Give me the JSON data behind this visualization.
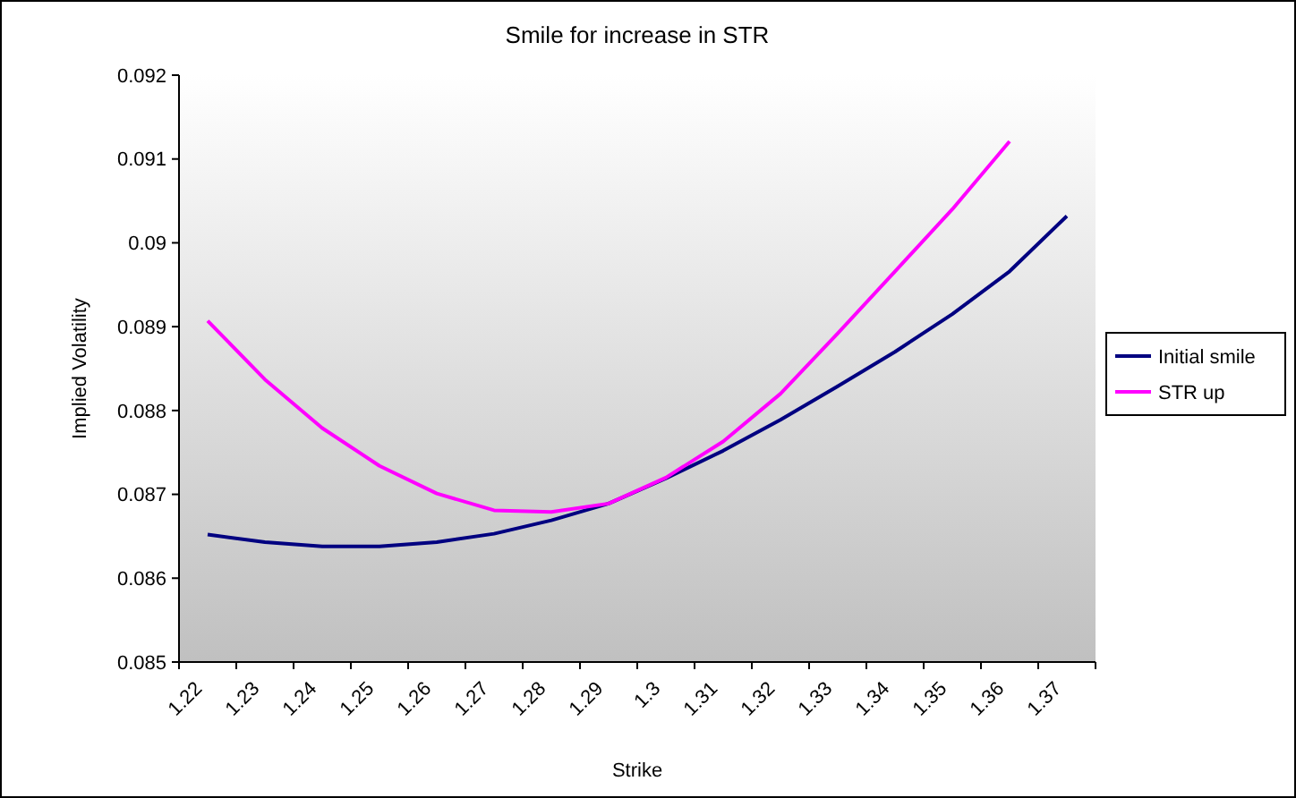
{
  "chart_data": {
    "type": "line",
    "title": "Smile for increase in STR",
    "xlabel": "Strike",
    "ylabel": "Implied Volatility",
    "categories": [
      "1.22",
      "1.23",
      "1.24",
      "1.25",
      "1.26",
      "1.27",
      "1.28",
      "1.29",
      "1.3",
      "1.31",
      "1.32",
      "1.33",
      "1.34",
      "1.35",
      "1.36",
      "1.37"
    ],
    "series": [
      {
        "name": "Initial smile",
        "color": "#000080",
        "values": [
          0.08652,
          0.08643,
          0.08638,
          0.08638,
          0.08643,
          0.08653,
          0.08669,
          0.08689,
          0.08719,
          0.08752,
          0.08789,
          0.08829,
          0.0887,
          0.08915,
          0.08966,
          0.09032
        ]
      },
      {
        "name": "STR up",
        "color": "#ff00ff",
        "values": [
          0.08907,
          0.08837,
          0.08779,
          0.08734,
          0.08701,
          0.08681,
          0.08679,
          0.08689,
          0.0872,
          0.08763,
          0.0882,
          0.08892,
          0.08966,
          0.0904,
          0.09121,
          null
        ]
      }
    ],
    "ylim": [
      0.085,
      0.092
    ],
    "yticks": [
      0.085,
      0.086,
      0.087,
      0.088,
      0.089,
      0.09,
      0.091,
      0.092
    ],
    "grid": false,
    "legend": "right",
    "marker": "none",
    "line_style": "solid"
  }
}
